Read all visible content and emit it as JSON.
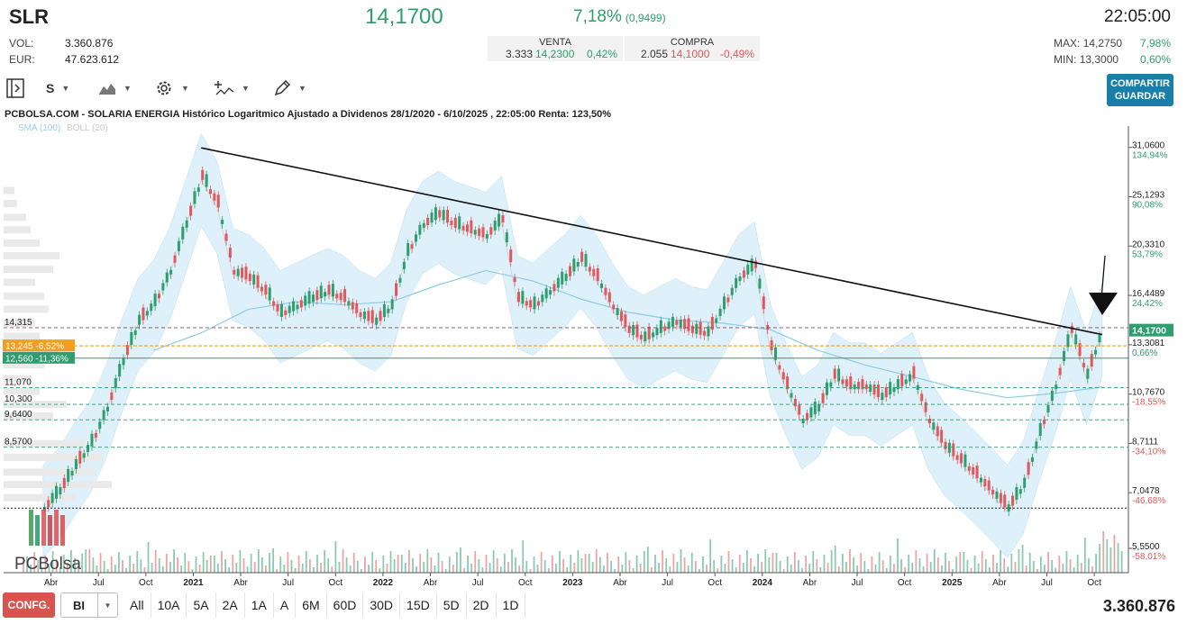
{
  "header": {
    "ticker": "SLR",
    "price": "14,1700",
    "change_pct": "7,18%",
    "change_abs": "(0,9499)",
    "time": "22:05:00",
    "vol_label": "VOL:",
    "vol_value": "3.360.876",
    "eur_label": "EUR:",
    "eur_value": "47.623.612",
    "venta": {
      "label": "VENTA",
      "qty": "3.333",
      "price": "14,2300",
      "pct": "0,42%"
    },
    "compra": {
      "label": "COMPRA",
      "qty": "2.055",
      "price": "14,1000",
      "pct": "-0,49%"
    },
    "max_label": "MAX:",
    "max_value": "14,2750",
    "max_pct": "7,98%",
    "min_label": "MIN:",
    "min_value": "13,3000",
    "min_pct": "0,60%"
  },
  "toolbar": {
    "period_label": "S",
    "share_line1": "COMPARTIR",
    "share_line2": "GUARDAR",
    "icons": [
      "panel-toggle-icon",
      "chart-type-icon",
      "gear-icon",
      "indicators-icon",
      "draw-pencil-icon"
    ]
  },
  "chart_title": "PCBOLSA.COM - SOLARIA ENERGIA Histórico Logaritmico Ajustado a Dividenos 28/1/2020 - 6/10/2025 , 22:05:00 Renta: 123,50%",
  "legend": {
    "sma": "SMA (100)",
    "boll": "BOLL (20)"
  },
  "watermark": "PCBolsa",
  "bottom": {
    "config_label": "CONFG.",
    "scale_value": "BI",
    "ranges": [
      "All",
      "10A",
      "5A",
      "2A",
      "1A",
      "A",
      "6M",
      "60D",
      "30D",
      "15D",
      "5D",
      "2D",
      "1D"
    ],
    "volume_total": "3.360.876"
  },
  "colors": {
    "up": "#2e9e6f",
    "down": "#e2575a",
    "band": "#d6ecf9",
    "sma": "#8fcbe8",
    "orange": "#f0a020",
    "accent_button": "#1a7fa8",
    "config_button": "#d9534f"
  },
  "chart_data": {
    "type": "line",
    "title": "PCBOLSA.COM - SOLARIA ENERGIA Histórico Logaritmico Ajustado a Dividenos 28/1/2020 - 6/10/2025 , 22:05:00 Renta: 123,50%",
    "scale": "log",
    "ylim": [
      5.0,
      33.0
    ],
    "x_tick_labels": [
      "Abr",
      "Jul",
      "Oct",
      "2021",
      "Abr",
      "Jul",
      "Oct",
      "2022",
      "Abr",
      "Jul",
      "Oct",
      "2023",
      "Abr",
      "Jul",
      "Oct",
      "2024",
      "Abr",
      "Jul",
      "Oct",
      "2025",
      "Abr",
      "Jul",
      "Oct"
    ],
    "y_axis": [
      {
        "value": 31.06,
        "price": "31,0600",
        "pct": "134,94%"
      },
      {
        "value": 25.1293,
        "price": "25,1293",
        "pct": "90,08%"
      },
      {
        "value": 20.331,
        "price": "20,3310",
        "pct": "53,79%"
      },
      {
        "value": 16.4489,
        "price": "16,4489",
        "pct": "24,42%"
      },
      {
        "value": 13.3081,
        "price": "13,3081",
        "pct": "0,66%"
      },
      {
        "value": 10.767,
        "price": "10,7670",
        "pct": "-18,55%"
      },
      {
        "value": 8.7111,
        "price": "8,7111",
        "pct": "-34,10%"
      },
      {
        "value": 7.0478,
        "price": "7,0478",
        "pct": "-46,68%"
      },
      {
        "value": 5.55,
        "price": "5,5500",
        "pct": "-58,01%"
      }
    ],
    "last_price": {
      "value": 14.17,
      "label": "14,1700"
    },
    "levels": [
      {
        "value": 14.315,
        "label": "14,315",
        "style": "dashed-dark"
      },
      {
        "value": 13.245,
        "label": "13,245 -6,52%",
        "style": "orange"
      },
      {
        "value": 12.56,
        "label": "12,560 -11,36%",
        "style": "green"
      },
      {
        "value": 11.07,
        "label": "11,070",
        "style": "dashed-green"
      },
      {
        "value": 10.3,
        "label": "10,300",
        "style": "dashed-green"
      },
      {
        "value": 9.64,
        "label": "9,6400",
        "style": "dashed-green"
      },
      {
        "value": 8.57,
        "label": "8,5700",
        "style": "dashed-green"
      },
      {
        "value": 6.6,
        "label": "",
        "style": "dotted-black"
      }
    ],
    "trendline": {
      "start": {
        "date": "2021-01",
        "price": 31.0
      },
      "end": {
        "date": "2025-10",
        "price": 13.9
      }
    },
    "series": [
      {
        "name": "Precio",
        "x": [
          "2020-03",
          "2020-04",
          "2020-05",
          "2020-06",
          "2020-07",
          "2020-08",
          "2020-09",
          "2020-10",
          "2020-11",
          "2020-12",
          "2021-01",
          "2021-02",
          "2021-03",
          "2021-04",
          "2021-05",
          "2021-06",
          "2021-07",
          "2021-08",
          "2021-09",
          "2021-10",
          "2021-11",
          "2021-12",
          "2022-01",
          "2022-02",
          "2022-03",
          "2022-04",
          "2022-05",
          "2022-06",
          "2022-07",
          "2022-08",
          "2022-09",
          "2022-10",
          "2022-11",
          "2022-12",
          "2023-01",
          "2023-02",
          "2023-03",
          "2023-04",
          "2023-05",
          "2023-06",
          "2023-07",
          "2023-08",
          "2023-09",
          "2023-10",
          "2023-11",
          "2023-12",
          "2024-01",
          "2024-02",
          "2024-03",
          "2024-04",
          "2024-05",
          "2024-06",
          "2024-07",
          "2024-08",
          "2024-09",
          "2024-10",
          "2024-11",
          "2024-12",
          "2025-01",
          "2025-02",
          "2025-03",
          "2025-04",
          "2025-05",
          "2025-06",
          "2025-07",
          "2025-08",
          "2025-09",
          "2025-10"
        ],
        "values": [
          6.5,
          7.0,
          7.8,
          8.6,
          10.0,
          12.2,
          14.5,
          15.7,
          18.0,
          22.0,
          27.0,
          24.0,
          18.0,
          17.5,
          16.5,
          15.0,
          15.5,
          16.0,
          16.5,
          16.0,
          15.0,
          14.5,
          15.5,
          19.5,
          22.0,
          23.0,
          22.0,
          21.5,
          21.0,
          22.5,
          16.0,
          15.5,
          16.5,
          17.5,
          19.0,
          17.5,
          15.5,
          14.0,
          13.5,
          14.0,
          14.5,
          14.0,
          13.8,
          15.5,
          17.5,
          18.5,
          13.0,
          11.0,
          9.5,
          10.0,
          11.5,
          11.0,
          11.0,
          10.5,
          11.0,
          11.5,
          9.5,
          8.5,
          8.0,
          7.5,
          7.0,
          6.5,
          7.2,
          9.0,
          11.0,
          14.0,
          11.5,
          14.17
        ]
      },
      {
        "name": "SMA (100)",
        "x": [
          "2020-10",
          "2021-01",
          "2021-04",
          "2021-07",
          "2021-10",
          "2022-01",
          "2022-04",
          "2022-07",
          "2022-10",
          "2023-01",
          "2023-04",
          "2023-07",
          "2023-10",
          "2024-01",
          "2024-04",
          "2024-07",
          "2024-10",
          "2025-01",
          "2025-04",
          "2025-07",
          "2025-10"
        ],
        "values": [
          13.0,
          14.0,
          15.5,
          16.0,
          15.8,
          16.0,
          17.2,
          18.3,
          17.5,
          16.2,
          15.3,
          14.8,
          14.6,
          14.2,
          13.0,
          12.2,
          11.6,
          11.0,
          10.6,
          10.8,
          11.1
        ]
      }
    ],
    "volume": {
      "unit": "shares",
      "last": "3.360.876"
    },
    "legend": [
      "SMA (100)",
      "BOLL (20)"
    ],
    "grid": false
  }
}
